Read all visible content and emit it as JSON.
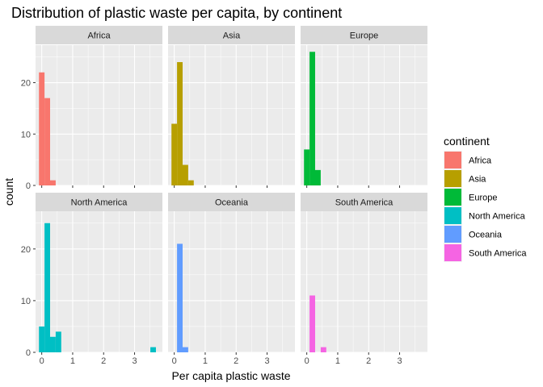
{
  "chart_data": {
    "type": "histogram",
    "title": "Distribution of plastic waste per capita, by continent",
    "xlabel": "Per capita plastic waste",
    "ylabel": "count",
    "facet_by": "continent",
    "facet_layout": "2 rows x 3 columns",
    "xlim": [
      -0.2,
      3.9
    ],
    "ylim": [
      0,
      27.3
    ],
    "x_ticks": [
      0,
      1,
      2,
      3
    ],
    "y_ticks": [
      0,
      10,
      20
    ],
    "bin_width": 0.18,
    "grid": true,
    "legend": {
      "title": "continent",
      "position": "right",
      "entries": [
        {
          "label": "Africa",
          "color": "#F8766D"
        },
        {
          "label": "Asia",
          "color": "#B79F00"
        },
        {
          "label": "Europe",
          "color": "#00BA38"
        },
        {
          "label": "North America",
          "color": "#00BFC4"
        },
        {
          "label": "Oceania",
          "color": "#619CFF"
        },
        {
          "label": "South America",
          "color": "#F564E3"
        }
      ]
    },
    "series": [
      {
        "name": "Africa",
        "color": "#F8766D",
        "bins": [
          {
            "x": 0.0,
            "count": 22
          },
          {
            "x": 0.18,
            "count": 17
          },
          {
            "x": 0.36,
            "count": 1
          }
        ]
      },
      {
        "name": "Asia",
        "color": "#B79F00",
        "bins": [
          {
            "x": 0.0,
            "count": 12
          },
          {
            "x": 0.18,
            "count": 24
          },
          {
            "x": 0.36,
            "count": 4
          },
          {
            "x": 0.54,
            "count": 1
          }
        ]
      },
      {
        "name": "Europe",
        "color": "#00BA38",
        "bins": [
          {
            "x": 0.0,
            "count": 7
          },
          {
            "x": 0.18,
            "count": 26
          },
          {
            "x": 0.36,
            "count": 3
          }
        ]
      },
      {
        "name": "North America",
        "color": "#00BFC4",
        "bins": [
          {
            "x": 0.0,
            "count": 5
          },
          {
            "x": 0.18,
            "count": 25
          },
          {
            "x": 0.36,
            "count": 3
          },
          {
            "x": 0.54,
            "count": 4
          },
          {
            "x": 3.6,
            "count": 1
          }
        ]
      },
      {
        "name": "Oceania",
        "color": "#619CFF",
        "bins": [
          {
            "x": 0.18,
            "count": 21
          },
          {
            "x": 0.36,
            "count": 1
          }
        ]
      },
      {
        "name": "South America",
        "color": "#F564E3",
        "bins": [
          {
            "x": 0.18,
            "count": 11
          },
          {
            "x": 0.54,
            "count": 1
          }
        ]
      }
    ]
  }
}
